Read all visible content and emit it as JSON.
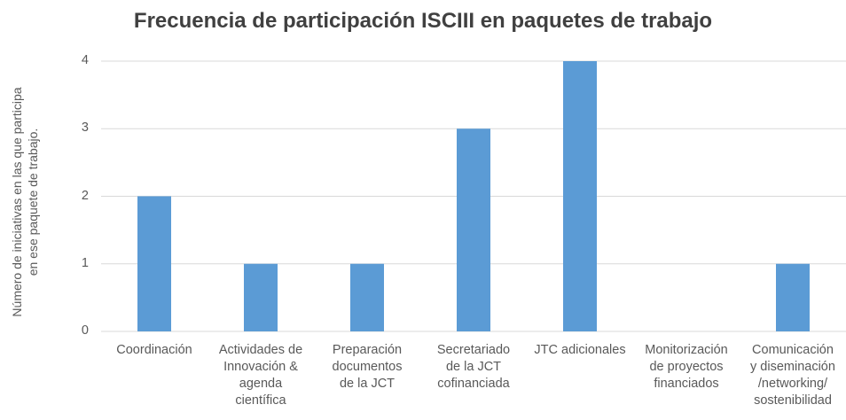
{
  "chart_data": {
    "type": "bar",
    "title": "Frecuencia de participación ISCIII en paquetes de trabajo",
    "ylabel": "Número de iniciativas en las que participa\nen ese paquete de trabajo.",
    "categories": [
      "Coordinación",
      "Actividades de\nInnovación &\nagenda\ncientífica",
      "Preparación\ndocumentos\nde la JCT",
      "Secretariado\nde la JCT\ncofinanciada",
      "JTC adicionales",
      "Monitorización\nde proyectos\nfinanciados",
      "Comunicación\ny diseminación\n/networking/\nsostenibilidad"
    ],
    "values": [
      2,
      1,
      1,
      3,
      4,
      0,
      1
    ],
    "color": "#5b9bd5",
    "ylim": [
      0,
      4
    ],
    "yticks": [
      0,
      1,
      2,
      3,
      4
    ],
    "grid": true
  }
}
